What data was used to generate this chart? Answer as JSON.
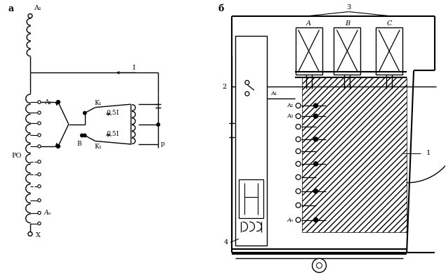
{
  "fig_width": 6.35,
  "fig_height": 3.98,
  "bg_color": "#ffffff",
  "line_color": "#000000",
  "label_a": "а",
  "label_b": "б",
  "label_A1_left": "A₁",
  "label_X": "X",
  "label_An_left": "Aₙ",
  "label_PO": "PO",
  "label_A2": "A₂",
  "label_K1": "K₁",
  "label_K2": "K₂",
  "label_B_node": "B",
  "label_p": "p",
  "label_05I_top": "0,5I",
  "label_05I_bot": "0,5I",
  "label_I": "I",
  "label_2": "2",
  "label_3": "3",
  "label_A": "A",
  "label_B_phase": "B",
  "label_C": "C",
  "label_A1_right": "A₁",
  "label_A2_right": "A₂",
  "label_A3_right": "A₃",
  "label_An_right": "Aₙ",
  "label_1": "1",
  "label_4": "4"
}
